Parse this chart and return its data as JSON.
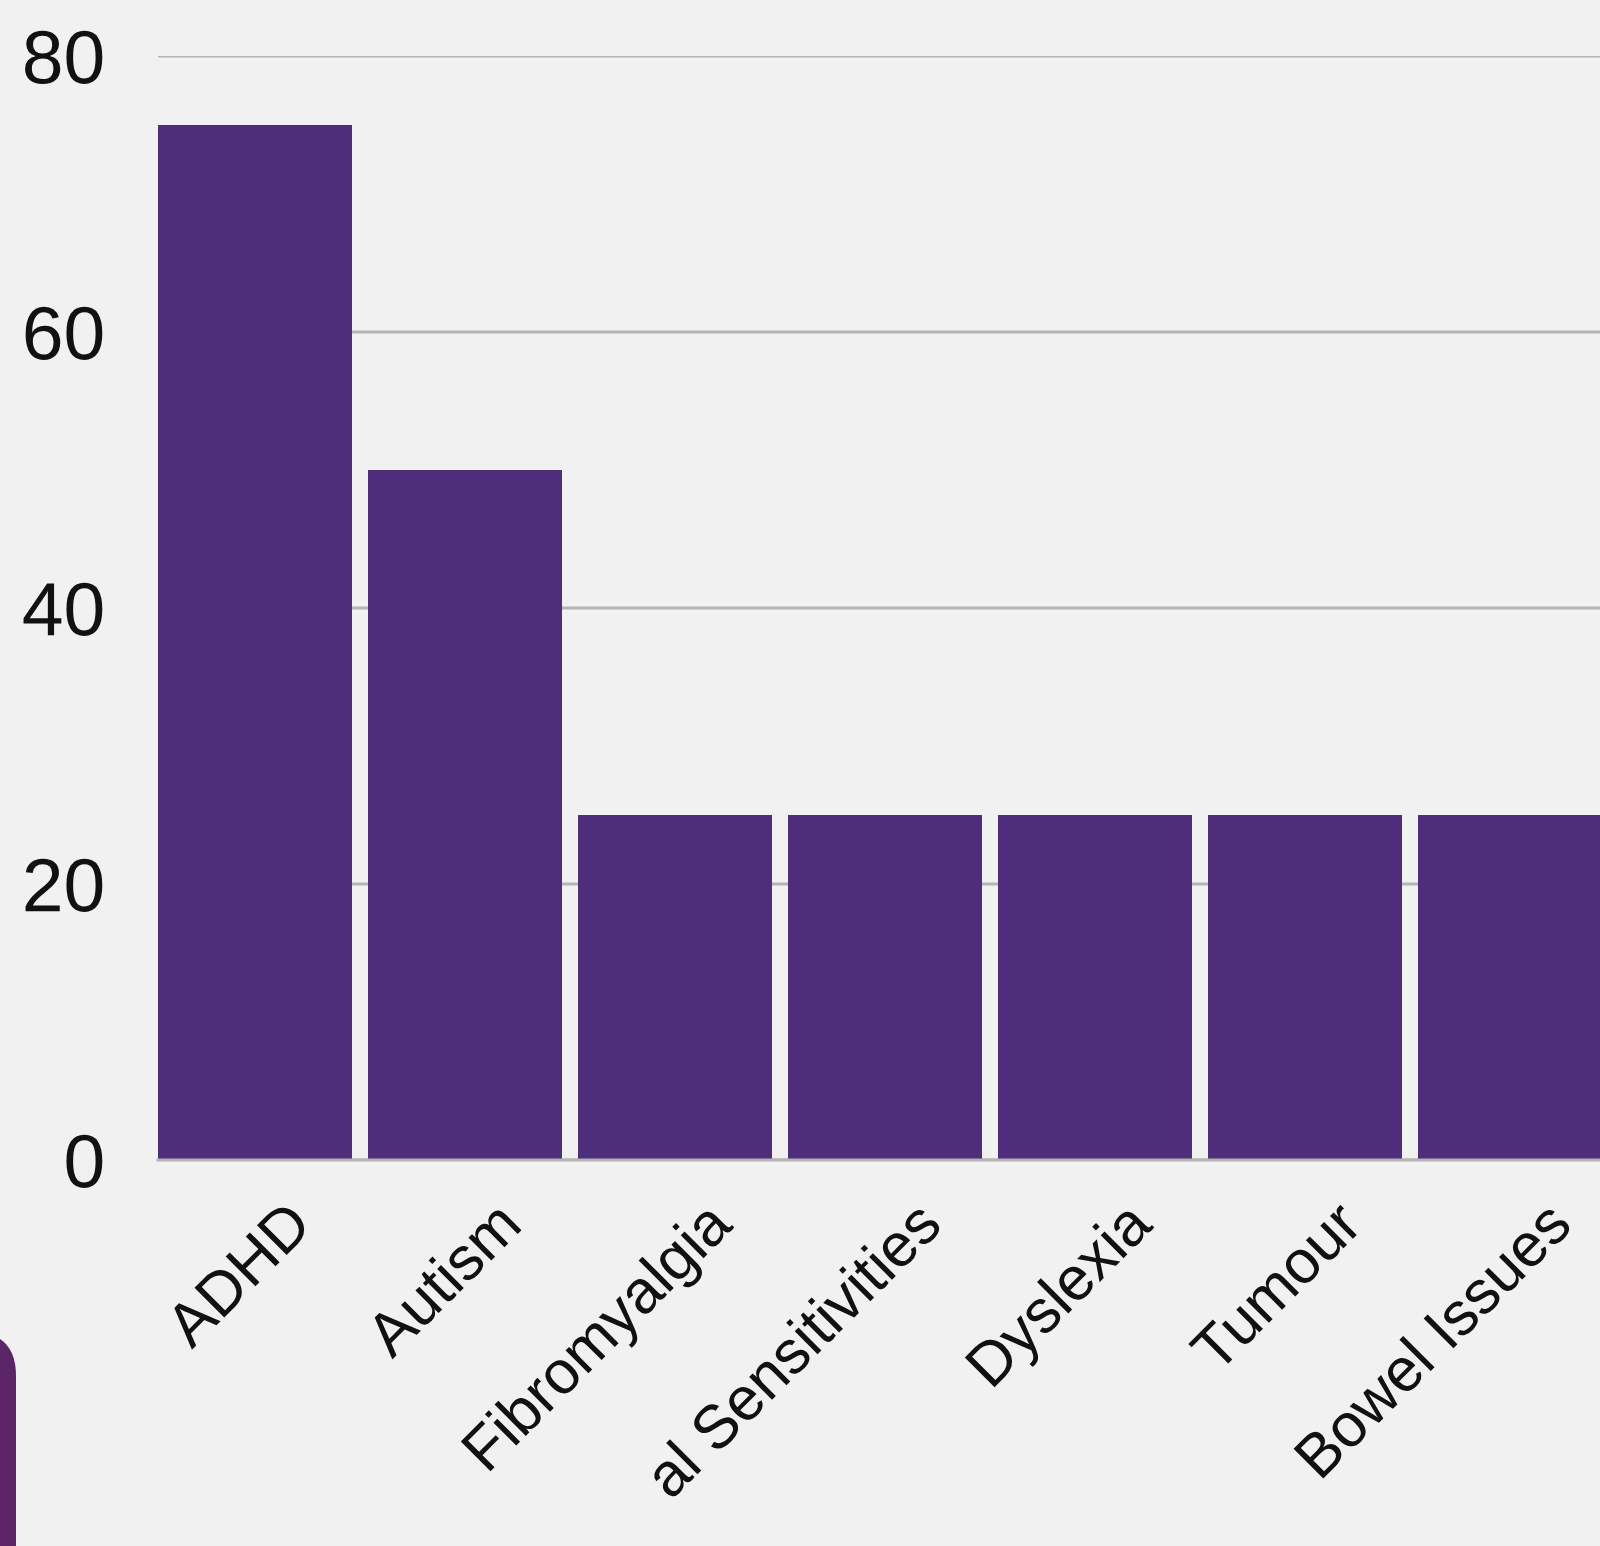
{
  "chart_data": {
    "type": "bar",
    "categories": [
      "ADHD",
      "Autism",
      "Fibromyalgia",
      "al Sensitivities",
      "Dyslexia",
      "Tumour",
      "Bowel Issues"
    ],
    "values": [
      75,
      50,
      25,
      25,
      25,
      25,
      25
    ],
    "color": "#4e2d7b",
    "ylim": [
      0,
      80
    ],
    "yticks": [
      0,
      20,
      40,
      60,
      80
    ],
    "grid": "y"
  }
}
